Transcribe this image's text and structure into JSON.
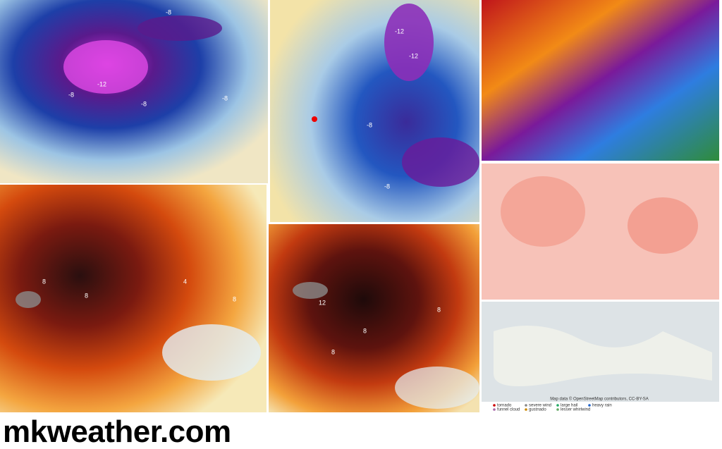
{
  "brand": "mkweather.com",
  "panels": {
    "cold_west": {
      "labels": [
        "-8",
        "-12",
        "-8",
        "-8",
        "-8"
      ]
    },
    "cold_east": {
      "labels": [
        "-12",
        "-12",
        "-8",
        "-8"
      ]
    },
    "warm_west": {
      "labels": [
        "8",
        "8",
        "8",
        "4"
      ]
    },
    "warm_east": {
      "labels": [
        "12",
        "8",
        "8",
        "8"
      ]
    }
  },
  "reports": {
    "attribution": "Map data © OpenStreetMap contributors, CC-BY-SA",
    "legend": [
      "tornado",
      "severe wind",
      "large hail",
      "heavy rain",
      "funnel cloud",
      "gustnado",
      "lesser whirlwind"
    ]
  }
}
